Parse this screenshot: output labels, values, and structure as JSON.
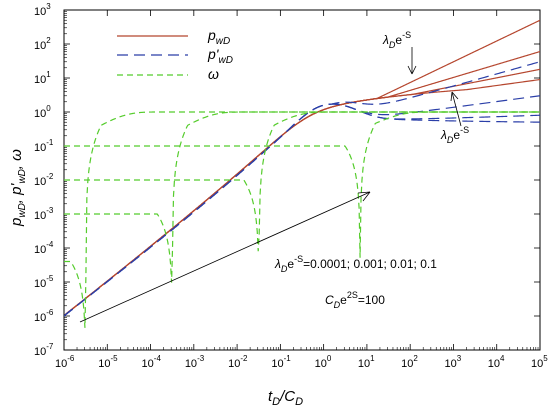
{
  "chart_data": {
    "type": "line",
    "xscale": "log",
    "yscale": "log",
    "xlim": [
      1e-06,
      100000.0
    ],
    "ylim": [
      1e-07,
      1000.0
    ],
    "x_ticks": [
      {
        "base": "10",
        "exp": "-6"
      },
      {
        "base": "10",
        "exp": "-5"
      },
      {
        "base": "10",
        "exp": "-4"
      },
      {
        "base": "10",
        "exp": "-3"
      },
      {
        "base": "10",
        "exp": "-2"
      },
      {
        "base": "10",
        "exp": "-1"
      },
      {
        "base": "10",
        "exp": "0"
      },
      {
        "base": "10",
        "exp": "1"
      },
      {
        "base": "10",
        "exp": "2"
      },
      {
        "base": "10",
        "exp": "3"
      },
      {
        "base": "10",
        "exp": "4"
      },
      {
        "base": "10",
        "exp": "5"
      }
    ],
    "y_ticks": [
      {
        "base": "10",
        "exp": "-7"
      },
      {
        "base": "10",
        "exp": "-6"
      },
      {
        "base": "10",
        "exp": "-5"
      },
      {
        "base": "10",
        "exp": "-4"
      },
      {
        "base": "10",
        "exp": "-3"
      },
      {
        "base": "10",
        "exp": "-2"
      },
      {
        "base": "10",
        "exp": "-1"
      },
      {
        "base": "10",
        "exp": "0"
      },
      {
        "base": "10",
        "exp": "1"
      },
      {
        "base": "10",
        "exp": "2"
      },
      {
        "base": "10",
        "exp": "3"
      }
    ],
    "xlabel": {
      "main": "t",
      "sub1": "D",
      "mid": "/C",
      "sub2": "D"
    },
    "ylabel": {
      "p": "p",
      "pSub": "wD",
      "sep1": ", ",
      "pp": "p'",
      "ppSub": "wD",
      "sep2": ", ",
      "omega": "ω"
    },
    "legend": [
      {
        "symbol": "p",
        "sub": "wD",
        "color": "#b5462e",
        "dash": "solid"
      },
      {
        "symbol": "p'",
        "sub": "wD",
        "color": "#2b3fa8",
        "dash": "dashed"
      },
      {
        "symbol": "ω",
        "sub": "",
        "color": "#55cc2c",
        "dash": "dashed"
      }
    ],
    "colors": {
      "pressure": "#b5462e",
      "derivative": "#2b3fa8",
      "omega": "#55cc2c"
    },
    "lambda_values": [
      0.0001,
      0.001,
      0.01,
      0.1
    ],
    "omega_dip_x": [
      3.2e-06,
      0.00032,
      0.032,
      7
    ],
    "pressure_late_values_at_1e5": [
      9,
      18,
      60,
      500
    ],
    "derivative_late_values_at_1e5": [
      0.5,
      0.8,
      3,
      30
    ],
    "annotations": {
      "lambda_upper": {
        "lam": "λ",
        "sub": "D",
        "rest": "e",
        "sup": "-S"
      },
      "lambda_lower": {
        "lam": "λ",
        "sub": "D",
        "rest": "e",
        "sup": "-S"
      },
      "lambda_values_text": {
        "lam": "λ",
        "sub": "D",
        "rest": "e",
        "sup": "-S",
        "values": "=0.0001; 0.001; 0.01; 0.1"
      },
      "cd_text": {
        "c": "C",
        "sub": "D",
        "rest": "e",
        "sup": "2S",
        "value": "=100"
      }
    }
  }
}
